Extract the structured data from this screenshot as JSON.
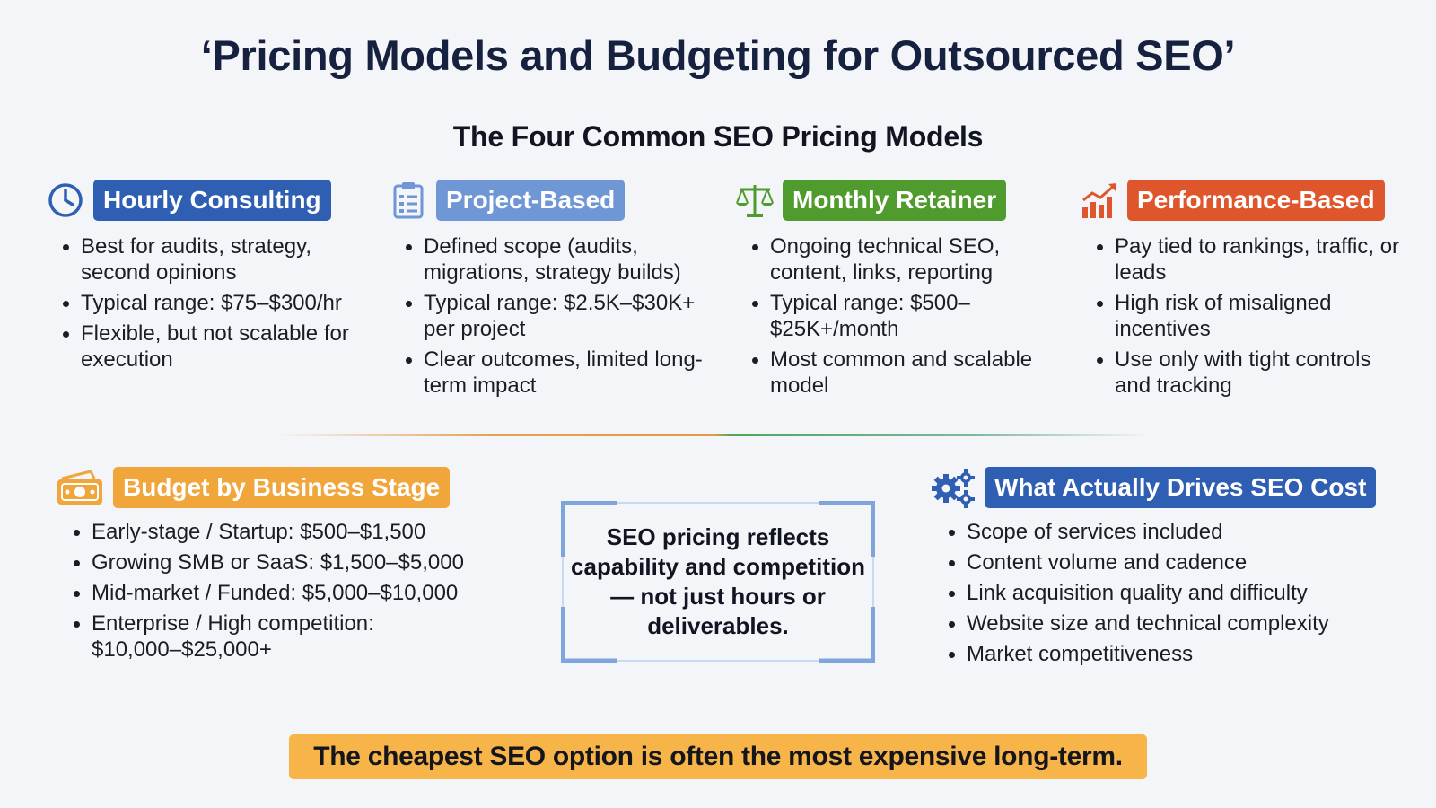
{
  "title": "‘Pricing Models and Budgeting for Outsourced SEO’",
  "subtitle": "The Four Common SEO Pricing Models",
  "models": [
    {
      "label": "Hourly Consulting",
      "color": "#2f5fb3",
      "icon": "clock-icon",
      "bullets": [
        "Best for audits, strategy, second opinions",
        "Typical range: $75–$300/hr",
        "Flexible, but not scalable for execution"
      ]
    },
    {
      "label": "Project-Based",
      "color": "#6f97d6",
      "icon": "clipboard-icon",
      "bullets": [
        "Defined scope (audits, migrations, strategy builds)",
        "Typical range: $2.5K–$30K+ per project",
        "Clear outcomes, limited long-term impact"
      ]
    },
    {
      "label": "Monthly Retainer",
      "color": "#4f9b2d",
      "icon": "scales-icon",
      "bullets": [
        "Ongoing technical SEO, content, links, reporting",
        "Typical range: $500–$25K+/month",
        "Most common and scalable model"
      ]
    },
    {
      "label": "Performance-Based",
      "color": "#e0562c",
      "icon": "chart-up-icon",
      "bullets": [
        "Pay tied to rankings, traffic, or leads",
        "High risk of misaligned incentives",
        "Use only with tight controls and tracking"
      ]
    }
  ],
  "budget": {
    "label": "Budget by Business Stage",
    "color": "#f0a63a",
    "icon": "money-icon",
    "bullets": [
      "Early-stage / Startup: $500–$1,500",
      "Growing SMB or SaaS: $1,500–$5,000",
      "Mid-market / Funded: $5,000–$10,000",
      "Enterprise / High competition: $10,000–$25,000+"
    ]
  },
  "quote": "SEO pricing reflects capability and competition — not just hours or deliverables.",
  "drivers": {
    "label": "What Actually Drives SEO Cost",
    "color": "#2f5fb3",
    "icon": "gears-icon",
    "bullets": [
      "Scope of services included",
      "Content volume and cadence",
      "Link acquisition quality and difficulty",
      "Website size and technical complexity",
      "Market competitiveness"
    ]
  },
  "banner": "The cheapest SEO option is often the most expensive long-term."
}
